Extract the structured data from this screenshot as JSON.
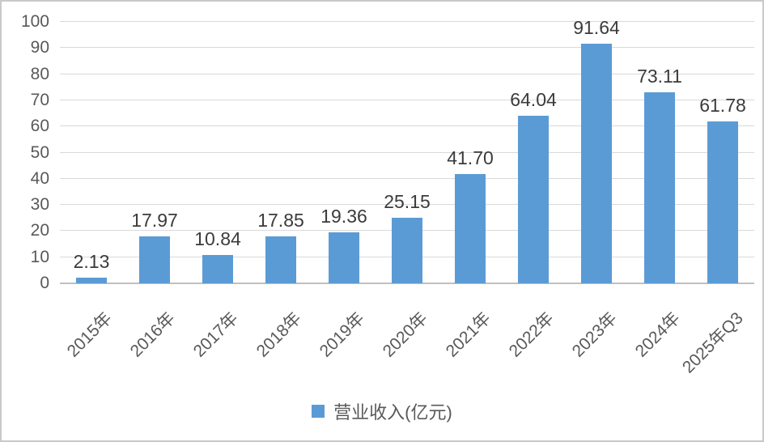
{
  "chart_data": {
    "type": "bar",
    "categories": [
      "2015年",
      "2016年",
      "2017年",
      "2018年",
      "2019年",
      "2020年",
      "2021年",
      "2022年",
      "2023年",
      "2024年",
      "2025年Q3"
    ],
    "values": [
      2.13,
      17.97,
      10.84,
      17.85,
      19.36,
      25.15,
      41.7,
      64.04,
      91.64,
      73.11,
      61.78
    ],
    "value_labels": [
      "2.13",
      "17.97",
      "10.84",
      "17.85",
      "19.36",
      "25.15",
      "41.70",
      "64.04",
      "91.64",
      "73.11",
      "61.78"
    ],
    "series_name": "营业收入(亿元)",
    "xlabel": "",
    "ylabel": "",
    "ylim": [
      0,
      100
    ],
    "yticks": [
      0,
      10,
      20,
      30,
      40,
      50,
      60,
      70,
      80,
      90,
      100
    ],
    "grid": true,
    "legend_position": "bottom",
    "colors": {
      "bar": "#5B9BD5",
      "gridline": "#D9D9D9",
      "axis_line": "#BFBFBF",
      "tick_label": "#595959",
      "data_label": "#3B3B3B",
      "frame_border": "#C9C9C9"
    }
  },
  "legend": {
    "label": "营业收入(亿元)",
    "marker_color": "#5B9BD5"
  }
}
